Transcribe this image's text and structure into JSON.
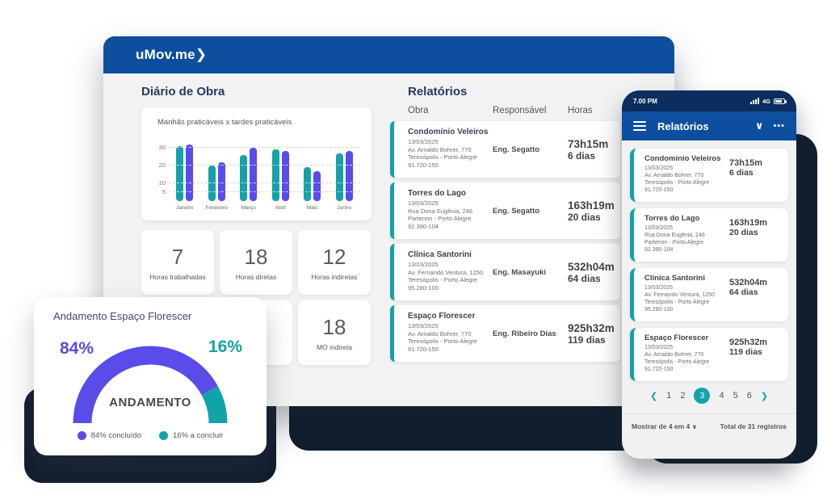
{
  "colors": {
    "header_blue": "#0d4f9e",
    "statusbar_blue": "#0b2d5f",
    "teal": "#12a3a8",
    "purple": "#5b4be8",
    "dark_navy": "#111e2e",
    "content_bg": "#f2f2f2"
  },
  "icons": {
    "chevron_down": "∨",
    "ellipsis": "•••",
    "chevron_left": "❮",
    "chevron_right": "❯",
    "dropdown_caret": "∨"
  },
  "app": {
    "logo": "uMov.me❯"
  },
  "main": {
    "diario": {
      "title": "Diário de Obra",
      "stats": [
        {
          "value": "7",
          "label": "Horas trabalhadas"
        },
        {
          "value": "18",
          "label": "Horas diretas"
        },
        {
          "value": "12",
          "label": "Horas indiretas"
        },
        {
          "value": "18",
          "label": "MO indireta"
        }
      ]
    },
    "relatorios": {
      "title": "Relatórios",
      "columns": [
        "Obra",
        "Responsável",
        "Horas"
      ],
      "rows": [
        {
          "obra": "Condomínio Veleiros",
          "date": "13/03/2025",
          "address": "Av. Arnaldo Bohrer, 770",
          "district": "Teresópolis - Porto Alegre",
          "cep": "91.720-150",
          "responsavel": "Eng. Segatto",
          "horas": "73h15m",
          "dias": "6 dias"
        },
        {
          "obra": "Torres do Lago",
          "date": "13/03/2025",
          "address": "Rua Dona Eugênia, 246",
          "district": "Partenon - Porto Alegre",
          "cep": "92.390-104",
          "responsavel": "Eng. Segatto",
          "horas": "163h19m",
          "dias": "20 dias"
        },
        {
          "obra": "Clínica Santorini",
          "date": "13/03/2025",
          "address": "Av. Fernando Ventura, 1250",
          "district": "Teresópolis - Porto Alegre",
          "cep": "95.280-100",
          "responsavel": "Eng. Masayuki",
          "horas": "532h04m",
          "dias": "64 dias"
        },
        {
          "obra": "Espaço Florescer",
          "date": "13/03/2025",
          "address": "Av. Arnaldo Bohrer, 770",
          "district": "Teresópolis - Porto Alegre",
          "cep": "91.720-150",
          "responsavel": "Eng. Ribeiro Dias",
          "horas": "925h32m",
          "dias": "119 dias"
        }
      ]
    }
  },
  "chart_data": {
    "type": "bar",
    "title": "Manhãs praticáveis x tardes praticáveis",
    "categories": [
      "Janeiro",
      "Fevereiro",
      "Março",
      "Abril",
      "Maio",
      "Junho"
    ],
    "series": [
      {
        "name": "Manhãs praticáveis",
        "color": "#12a3a8",
        "values": [
          31,
          20,
          26,
          29,
          19,
          27
        ]
      },
      {
        "name": "Tardes praticáveis",
        "color": "#5b4be8",
        "values": [
          32,
          22,
          30,
          28,
          17,
          28
        ]
      }
    ],
    "yticks": [
      30,
      20,
      10,
      5
    ],
    "ylim": [
      0,
      34
    ],
    "grid": "dashed horizontal gridlines",
    "legend": "none"
  },
  "phone": {
    "status": {
      "time": "7.00 PM",
      "network": "4G"
    },
    "title": "Relatórios",
    "items": [
      {
        "obra": "Condomínio Veleiros",
        "date": "13/03/2025",
        "address": "Av. Arnaldo Bohrer, 770",
        "district": "Teresópolis - Porto Alegre",
        "cep": "91.720-150",
        "horas": "73h15m",
        "dias": "6 dias"
      },
      {
        "obra": "Torres do Lago",
        "date": "13/03/2025",
        "address": "Rua Dona Eugênia, 246",
        "district": "Partenon - Porto Alegre",
        "cep": "92.390-104",
        "horas": "163h19m",
        "dias": "20 dias"
      },
      {
        "obra": "Clínica Santorini",
        "date": "13/03/2025",
        "address": "Av. Fernando Ventura, 1250",
        "district": "Teresópolis - Porto Alegre",
        "cep": "95.280-100",
        "horas": "532h04m",
        "dias": "64 dias"
      },
      {
        "obra": "Espaço Florescer",
        "date": "13/03/2025",
        "address": "Av. Arnaldo Bohrer, 770",
        "district": "Teresópolis - Porto Alegre",
        "cep": "91.720-150",
        "horas": "925h32m",
        "dias": "119 dias"
      }
    ],
    "pagination": {
      "pages": [
        "1",
        "2",
        "3",
        "4",
        "5",
        "6"
      ],
      "active": "3"
    },
    "footer": {
      "page_size": "Mostrar de 4 em 4",
      "total": "Total de 31 registros"
    }
  },
  "gauge": {
    "title": "Andamento Espaço Florescer",
    "left_value": "84%",
    "right_value": "16%",
    "center_label": "ANDAMENTO",
    "percent_done": 84,
    "percent_todo": 16,
    "legend": [
      {
        "label": "84% concluído",
        "color": "#5b4be8"
      },
      {
        "label": "16% a concluir",
        "color": "#12a3a8"
      }
    ]
  }
}
